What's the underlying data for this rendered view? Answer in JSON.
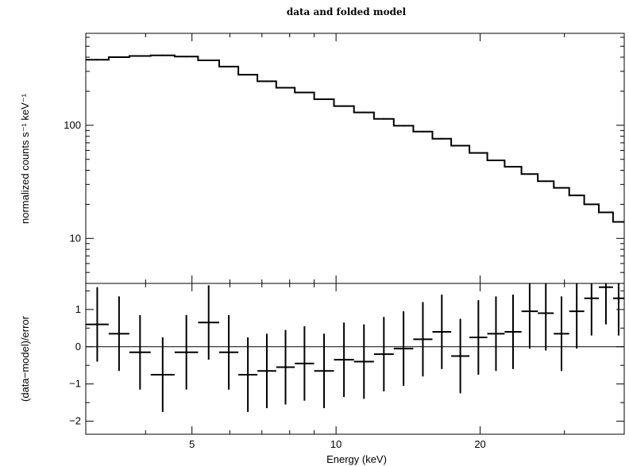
{
  "chart_data": [
    {
      "type": "line",
      "title": "data and folded model",
      "xlabel": "",
      "ylabel": "normalized counts s⁻¹ keV⁻¹",
      "xscale": "log",
      "yscale": "log",
      "xlim": [
        3.0,
        40.0
      ],
      "ylim": [
        4.0,
        650.0
      ],
      "y_ticks": [
        {
          "value": 10,
          "label": "10"
        },
        {
          "value": 100,
          "label": "100"
        }
      ],
      "series": [
        {
          "style": "step",
          "bins": [
            {
              "x0": 3.0,
              "x1": 3.35,
              "y": 380
            },
            {
              "x0": 3.35,
              "x1": 3.7,
              "y": 400
            },
            {
              "x0": 3.7,
              "x1": 4.1,
              "y": 410
            },
            {
              "x0": 4.1,
              "x1": 4.6,
              "y": 415
            },
            {
              "x0": 4.6,
              "x1": 5.15,
              "y": 405
            },
            {
              "x0": 5.15,
              "x1": 5.7,
              "y": 375
            },
            {
              "x0": 5.7,
              "x1": 6.25,
              "y": 330
            },
            {
              "x0": 6.25,
              "x1": 6.85,
              "y": 280
            },
            {
              "x0": 6.85,
              "x1": 7.5,
              "y": 245
            },
            {
              "x0": 7.5,
              "x1": 8.2,
              "y": 215
            },
            {
              "x0": 8.2,
              "x1": 9.0,
              "y": 195
            },
            {
              "x0": 9.0,
              "x1": 9.9,
              "y": 170
            },
            {
              "x0": 9.9,
              "x1": 10.9,
              "y": 148
            },
            {
              "x0": 10.9,
              "x1": 12.0,
              "y": 130
            },
            {
              "x0": 12.0,
              "x1": 13.2,
              "y": 114
            },
            {
              "x0": 13.2,
              "x1": 14.5,
              "y": 99
            },
            {
              "x0": 14.5,
              "x1": 15.9,
              "y": 88
            },
            {
              "x0": 15.9,
              "x1": 17.4,
              "y": 76
            },
            {
              "x0": 17.4,
              "x1": 19.0,
              "y": 66
            },
            {
              "x0": 19.0,
              "x1": 20.7,
              "y": 57
            },
            {
              "x0": 20.7,
              "x1": 22.5,
              "y": 49
            },
            {
              "x0": 22.5,
              "x1": 24.4,
              "y": 43
            },
            {
              "x0": 24.4,
              "x1": 26.4,
              "y": 37
            },
            {
              "x0": 26.4,
              "x1": 28.5,
              "y": 32
            },
            {
              "x0": 28.5,
              "x1": 30.7,
              "y": 28
            },
            {
              "x0": 30.7,
              "x1": 33.0,
              "y": 24
            },
            {
              "x0": 33.0,
              "x1": 35.4,
              "y": 20
            },
            {
              "x0": 35.4,
              "x1": 37.9,
              "y": 17
            },
            {
              "x0": 37.9,
              "x1": 40.0,
              "y": 14
            }
          ]
        }
      ]
    },
    {
      "type": "scatter",
      "xlabel": "Energy (keV)",
      "ylabel": "(data−model)/error",
      "xscale": "log",
      "yscale": "linear",
      "xlim": [
        3.0,
        40.0
      ],
      "ylim": [
        -2.35,
        1.7
      ],
      "x_ticks": [
        {
          "value": 5,
          "label": "5"
        },
        {
          "value": 10,
          "label": "10"
        },
        {
          "value": 20,
          "label": "20"
        }
      ],
      "y_ticks": [
        {
          "value": 1,
          "label": "1"
        },
        {
          "value": 0,
          "label": "0"
        },
        {
          "value": -1,
          "label": "−1"
        },
        {
          "value": -2,
          "label": "−2"
        }
      ],
      "zero_line": 0,
      "points": [
        {
          "x0": 3.0,
          "x1": 3.35,
          "y": 0.6
        },
        {
          "x0": 3.35,
          "x1": 3.7,
          "y": 0.35
        },
        {
          "x0": 3.7,
          "x1": 4.1,
          "y": -0.15
        },
        {
          "x0": 4.1,
          "x1": 4.6,
          "y": -0.75
        },
        {
          "x0": 4.6,
          "x1": 5.15,
          "y": -0.15
        },
        {
          "x0": 5.15,
          "x1": 5.7,
          "y": 0.65
        },
        {
          "x0": 5.7,
          "x1": 6.25,
          "y": -0.15
        },
        {
          "x0": 6.25,
          "x1": 6.85,
          "y": -0.75
        },
        {
          "x0": 6.85,
          "x1": 7.5,
          "y": -0.65
        },
        {
          "x0": 7.5,
          "x1": 8.2,
          "y": -0.55
        },
        {
          "x0": 8.2,
          "x1": 9.0,
          "y": -0.45
        },
        {
          "x0": 9.0,
          "x1": 9.9,
          "y": -0.65
        },
        {
          "x0": 9.9,
          "x1": 10.9,
          "y": -0.35
        },
        {
          "x0": 10.9,
          "x1": 12.0,
          "y": -0.4
        },
        {
          "x0": 12.0,
          "x1": 13.2,
          "y": -0.2
        },
        {
          "x0": 13.2,
          "x1": 14.5,
          "y": -0.05
        },
        {
          "x0": 14.5,
          "x1": 15.9,
          "y": 0.2
        },
        {
          "x0": 15.9,
          "x1": 17.4,
          "y": 0.4
        },
        {
          "x0": 17.4,
          "x1": 19.0,
          "y": -0.25
        },
        {
          "x0": 19.0,
          "x1": 20.7,
          "y": 0.25
        },
        {
          "x0": 20.7,
          "x1": 22.5,
          "y": 0.35
        },
        {
          "x0": 22.5,
          "x1": 24.4,
          "y": 0.4
        },
        {
          "x0": 24.4,
          "x1": 26.4,
          "y": 0.95
        },
        {
          "x0": 26.4,
          "x1": 28.5,
          "y": 0.9
        },
        {
          "x0": 28.5,
          "x1": 30.7,
          "y": 0.35
        },
        {
          "x0": 30.7,
          "x1": 33.0,
          "y": 0.95
        },
        {
          "x0": 33.0,
          "x1": 35.4,
          "y": 1.3
        },
        {
          "x0": 35.4,
          "x1": 37.9,
          "y": 1.6
        },
        {
          "x0": 37.9,
          "x1": 40.0,
          "y": 1.3
        }
      ]
    }
  ]
}
